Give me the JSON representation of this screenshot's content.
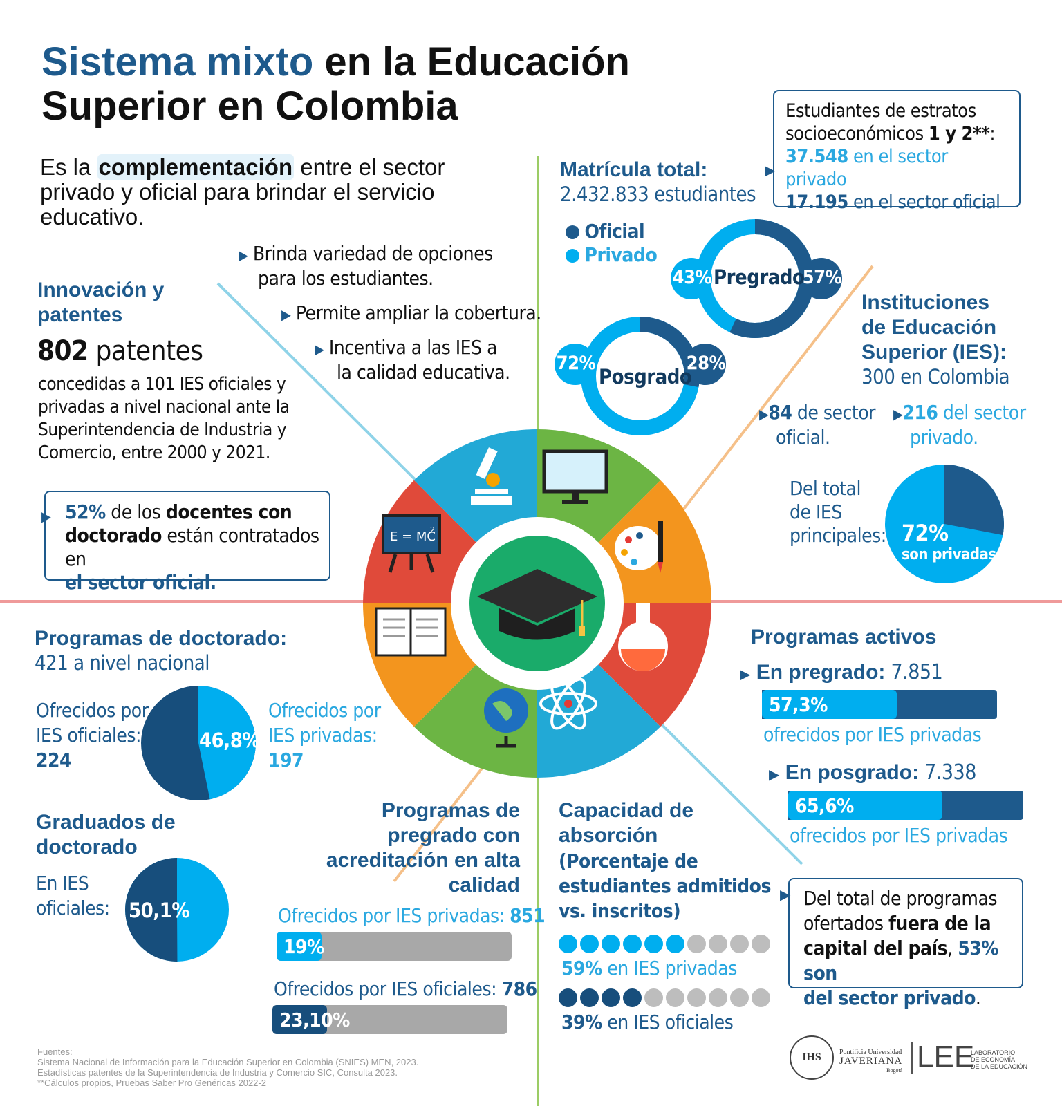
{
  "title": {
    "part1": "Sistema mixto",
    "part2": " en la Educación",
    "line2": "Superior en Colombia"
  },
  "intro": {
    "pre": "Es la ",
    "highlight": "complementación",
    "post": " entre el sector",
    "line2": "privado y oficial para brindar el servicio",
    "line3": "educativo."
  },
  "benefits": {
    "b1_l1": "Brinda variedad de opciones",
    "b1_l2": "para los estudiantes.",
    "b2": "Permite ampliar la cobertura.",
    "b3_l1": "Incentiva a las IES a",
    "b3_l2": "la calidad educativa."
  },
  "innovacion": {
    "h_l1": "Innovación y",
    "h_l2": "patentes",
    "num": "802",
    "unit": " patentes",
    "d1": "concedidas a 101 IES oficiales y",
    "d2": "privadas a nivel nacional ante la",
    "d3": "Superintendencia de Industria y",
    "d4": "Comercio, entre 2000 y 2021."
  },
  "docentes": {
    "pct": "52%",
    "t1": " de los ",
    "t2": "docentes con",
    "t3": "doctorado",
    "t4": " están contratados en",
    "t5": "el sector oficial."
  },
  "matricula": {
    "h": "Matrícula total:",
    "v": "2.432.833 estudiantes",
    "legend_oficial": "Oficial",
    "legend_privado": "Privado"
  },
  "pregrado_donut": {
    "label": "Pregrado",
    "privado": "43%",
    "oficial": "57%",
    "privado_value": 43,
    "oficial_value": 57
  },
  "posgrado_donut": {
    "label": "Posgrado",
    "privado": "72%",
    "oficial": "28%",
    "privado_value": 72,
    "oficial_value": 28
  },
  "estratos": {
    "l1": "Estudiantes de estratos",
    "l2a": "socioeconómicos ",
    "l2b": "1 y 2**",
    "l2c": ":",
    "p_num": "37.548",
    "p_txt": " en el sector privado",
    "o_num": "17.195",
    "o_txt": " en el sector oficial"
  },
  "ies": {
    "h1": "Instituciones",
    "h2": "de Educación",
    "h3": "Superior (IES):",
    "v": "300 en Colombia",
    "of_num": "84",
    "of_t1": " de sector",
    "of_t2": "oficial.",
    "pr_num": "216",
    "pr_t1": "  del sector",
    "pr_t2": "privado.",
    "del1": "Del total",
    "del2": "de IES",
    "del3": "principales:",
    "pie_pct": "72%",
    "pie_txt": "son privadas",
    "pie_value": 72
  },
  "doctorado": {
    "h": "Programas de doctorado:",
    "v": "421 a nivel nacional",
    "of1": "Ofrecidos por",
    "of2": "IES oficiales:",
    "of3": "224",
    "pr1": "Ofrecidos por",
    "pr2": "IES privadas:",
    "pr3": "197",
    "pct": "46,8%",
    "pct_value": 46.8
  },
  "graduados": {
    "h1": "Graduados de",
    "h2": "doctorado",
    "t1": "En IES",
    "t2": "oficiales:",
    "pct": "50,1%",
    "pct_value": 50.1
  },
  "acreditacion": {
    "h1": "Programas de",
    "h2": "pregrado con",
    "h3": "acreditación en alta",
    "h4": "calidad",
    "priv_lbl": "Ofrecidos por IES privadas: ",
    "priv_num": "851",
    "priv_pct": "19%",
    "priv_value": 19,
    "ofi_lbl": "Ofrecidos por IES oficiales: ",
    "ofi_num": "786",
    "ofi_pct": "23,10%",
    "ofi_value": 23.1
  },
  "absorcion": {
    "h1": "Capacidad de",
    "h2": "absorción",
    "s1": "(Porcentaje de",
    "s2": "estudiantes admitidos",
    "s3": "vs. inscritos)",
    "priv_pct": "59%",
    "priv_txt": "  en IES privadas",
    "priv_value": 59,
    "ofi_pct": "39%",
    "ofi_txt": "  en IES oficiales",
    "ofi_value": 39
  },
  "activos": {
    "h": "Programas activos",
    "pre_lbl": "En pregrado:",
    "pre_num": " 7.851",
    "pre_pct": "57,3%",
    "pre_value": 57.3,
    "pre_txt": "ofrecidos por IES privadas",
    "pos_lbl": "En posgrado:",
    "pos_num": " 7.338",
    "pos_pct": "65,6%",
    "pos_value": 65.6,
    "pos_txt": "ofrecidos por IES privadas"
  },
  "fuera": {
    "t1": "Del total de programas",
    "t2a": "ofertados ",
    "t2b": "fuera de la",
    "t3a": "capital del país",
    "t3b": ", ",
    "t3c": "53% son",
    "t4": "del sector privado",
    "t4b": "."
  },
  "fuentes": {
    "h": "Fuentes:",
    "l1": "Sistema Nacional de Información para la Educación Superior en Colombia (SNIES) MEN, 2023.",
    "l2": "Estadísticas patentes de la Superintendencia de Industria y Comercio SIC, Consulta 2023.",
    "l3": "**Cálculos propios, Pruebas Saber Pro Genéricas 2022-2"
  },
  "logos": {
    "puj1": "Pontificia Universidad",
    "puj2": "JAVERIANA",
    "puj3": "Bogotá",
    "seal": "IHS",
    "lee": "LEE",
    "lee1": "LABORATORIO",
    "lee2": "DE ECONOMÍA",
    "lee3": "DE LA EDUCACIÓN"
  },
  "wheel": {
    "center_icon": "graduation-cap-icon",
    "formula": "E = MC",
    "formula_sup": "2"
  },
  "colors": {
    "dark_blue": "#1e5a8c",
    "light_blue": "#00aeef",
    "navy": "#174e7c",
    "gray": "#a8a8a8"
  }
}
